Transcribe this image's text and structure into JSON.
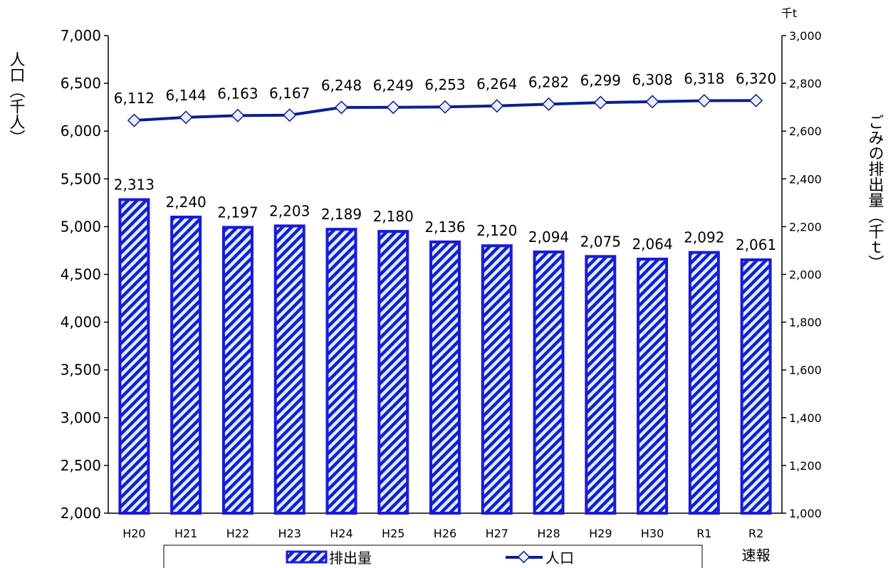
{
  "chart_data": {
    "type": "bar",
    "categories": [
      "H20",
      "H21",
      "H22",
      "H23",
      "H24",
      "H25",
      "H26",
      "H27",
      "H28",
      "H29",
      "H30",
      "R1",
      "R2"
    ],
    "category_sublabels": [
      "",
      "",
      "",
      "",
      "",
      "",
      "",
      "",
      "",
      "",
      "",
      "",
      "速報"
    ],
    "series": [
      {
        "name": "排出量",
        "type": "bar",
        "axis": "right",
        "values": [
          2313,
          2240,
          2197,
          2203,
          2189,
          2180,
          2136,
          2120,
          2094,
          2075,
          2064,
          2092,
          2061
        ],
        "labels": [
          "2,313",
          "2,240",
          "2,197",
          "2,203",
          "2,189",
          "2,180",
          "2,136",
          "2,120",
          "2,094",
          "2,075",
          "2,064",
          "2,092",
          "2,061"
        ],
        "color": "#1a1ad6"
      },
      {
        "name": "人口",
        "type": "line",
        "axis": "left",
        "values": [
          6112,
          6144,
          6163,
          6167,
          6248,
          6249,
          6253,
          6264,
          6282,
          6299,
          6308,
          6318,
          6320
        ],
        "labels": [
          "6,112",
          "6,144",
          "6,163",
          "6,167",
          "6,248",
          "6,249",
          "6,253",
          "6,264",
          "6,282",
          "6,299",
          "6,308",
          "6,318",
          "6,320"
        ],
        "color": "#0a1f8f"
      }
    ],
    "ylabel_left": "人口（千人）",
    "ylabel_right": "ごみの排出量（千ｔ）",
    "right_unit": "千t",
    "ylim_left": [
      2000,
      7000
    ],
    "ylim_right": [
      1000,
      3000
    ],
    "yticks_left": [
      "2,000",
      "2,500",
      "3,000",
      "3,500",
      "4,000",
      "4,500",
      "5,000",
      "5,500",
      "6,000",
      "6,500",
      "7,000"
    ],
    "yticks_right": [
      "1,000",
      "1,200",
      "1,400",
      "1,600",
      "1,800",
      "2,000",
      "2,200",
      "2,400",
      "2,600",
      "2,800",
      "3,000"
    ],
    "grid": false,
    "legend_position": "bottom"
  }
}
